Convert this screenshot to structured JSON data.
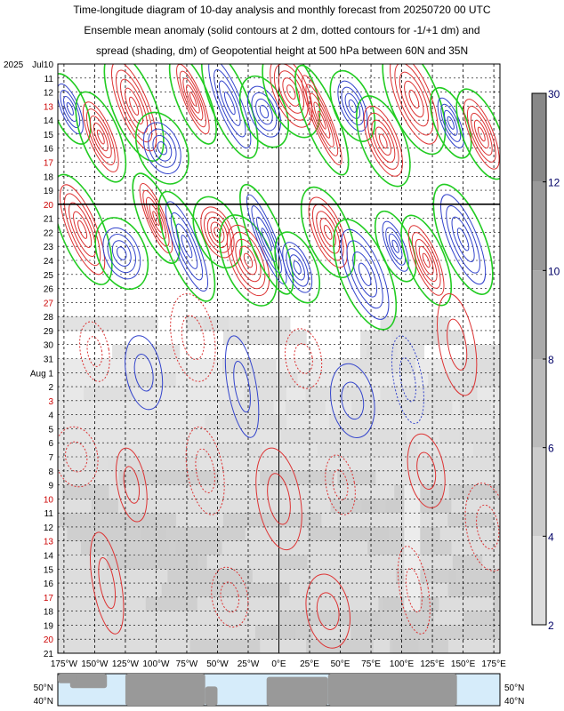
{
  "title_lines": [
    "Time-longitude diagram of 10-day analysis and monthly forecast from 20250720 00 UTC",
    "Ensemble mean anomaly (solid contours at 2 dm, dotted contours for -1/+1 dm) and",
    "spread (shading, dm) of Geopotential height at 500 hPa between 60N and 35N"
  ],
  "chart_data": {
    "type": "heatmap",
    "title": "Time-longitude diagram of 10-day analysis and monthly forecast from 20250720 00 UTC",
    "variable": "Geopotential height at 500 hPa",
    "latitude_band": "between 60N and 35N",
    "x_tick_labels": [
      "175°W",
      "150°W",
      "125°W",
      "100°W",
      "75°W",
      "50°W",
      "25°W",
      "0°E",
      "25°E",
      "50°E",
      "75°E",
      "100°E",
      "125°E",
      "150°E",
      "175°E"
    ],
    "x_tick_values": [
      -175,
      -150,
      -125,
      -100,
      -75,
      -50,
      -25,
      0,
      25,
      50,
      75,
      100,
      125,
      150,
      175
    ],
    "xlim": [
      -180,
      180
    ],
    "y_year_label": "2025",
    "y_tick_labels": [
      "Jul10",
      "11",
      "12",
      "13",
      "14",
      "15",
      "16",
      "17",
      "18",
      "19",
      "20",
      "21",
      "22",
      "23",
      "24",
      "25",
      "26",
      "27",
      "28",
      "29",
      "30",
      "31",
      "Aug 1",
      "2",
      "3",
      "4",
      "5",
      "6",
      "7",
      "8",
      "9",
      "10",
      "11",
      "12",
      "13",
      "14",
      "15",
      "16",
      "17",
      "18",
      "19",
      "20",
      "21"
    ],
    "y_red_labels": [
      "13",
      "20",
      "27",
      "3",
      "10",
      "17"
    ],
    "analysis_end_label": "20",
    "colorbar_ticks": [
      "30",
      "12",
      "10",
      "8",
      "6",
      "4",
      "2"
    ],
    "colorbar_colors": [
      "#888888",
      "#999999",
      "#aaaaaa",
      "#bbbbbb",
      "#cccccc",
      "#dddddd"
    ],
    "contour_colors": {
      "positive": "#dd3333",
      "negative": "#3344cc",
      "zero": "#22cc22"
    },
    "map_lat_labels": [
      "50°N",
      "40°N"
    ],
    "map_colors": {
      "ocean": "#d6ecfa",
      "land": "#999999"
    }
  }
}
